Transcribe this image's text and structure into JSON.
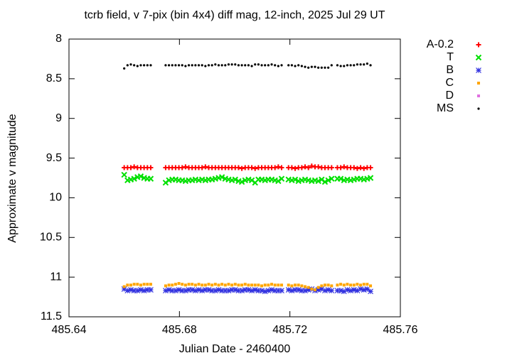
{
  "chart_data": {
    "type": "scatter",
    "title": "tcrb field, v 7-pix (bin 4x4) diff mag, 12-inch, 2025 Jul 29 UT",
    "x_label": "Julian Date - 2460400",
    "y_label": "Approximate v magnitude",
    "xlim": [
      485.64,
      485.76
    ],
    "xticks": [
      485.64,
      485.68,
      485.72,
      485.76
    ],
    "ylim": [
      8,
      11.5
    ],
    "yticks": [
      8,
      8.5,
      9,
      9.5,
      10,
      10.5,
      11,
      11.5
    ],
    "y_reversed": true,
    "legend": "outside-right",
    "x": [
      485.66,
      485.6612,
      485.6624,
      485.6636,
      485.6648,
      485.666,
      485.6672,
      485.6684,
      485.6696,
      485.675,
      485.6762,
      485.6774,
      485.6786,
      485.6798,
      485.681,
      485.6822,
      485.6834,
      485.6846,
      485.6858,
      485.687,
      485.6882,
      485.6894,
      485.6906,
      485.6918,
      485.693,
      485.6942,
      485.6954,
      485.6966,
      485.6978,
      485.699,
      485.7002,
      485.7014,
      485.7026,
      485.7038,
      485.705,
      485.7062,
      485.7074,
      485.7086,
      485.7098,
      485.711,
      485.7122,
      485.7134,
      485.7146,
      485.7158,
      485.717,
      485.7195,
      485.7207,
      485.7219,
      485.7231,
      485.7243,
      485.7255,
      485.7267,
      485.7279,
      485.7291,
      485.7303,
      485.7315,
      485.7327,
      485.7339,
      485.7351,
      485.7372,
      485.7384,
      485.7396,
      485.7408,
      485.742,
      485.7432,
      485.7444,
      485.7456,
      485.7468,
      485.748,
      485.7492
    ],
    "series": [
      {
        "name": "A-0.2",
        "color": "#ff0000",
        "marker": "plus",
        "values": [
          9.62,
          9.62,
          9.62,
          9.61,
          9.62,
          9.62,
          9.62,
          9.62,
          9.62,
          9.62,
          9.62,
          9.62,
          9.62,
          9.62,
          9.62,
          9.61,
          9.62,
          9.62,
          9.62,
          9.62,
          9.62,
          9.61,
          9.62,
          9.62,
          9.62,
          9.62,
          9.62,
          9.62,
          9.62,
          9.62,
          9.62,
          9.62,
          9.63,
          9.62,
          9.62,
          9.62,
          9.63,
          9.62,
          9.62,
          9.62,
          9.62,
          9.62,
          9.62,
          9.61,
          9.62,
          9.62,
          9.62,
          9.63,
          9.62,
          9.62,
          9.61,
          9.62,
          9.6,
          9.61,
          9.61,
          9.62,
          9.62,
          9.62,
          9.62,
          9.62,
          9.62,
          9.61,
          9.62,
          9.62,
          9.62,
          9.63,
          9.62,
          9.63,
          9.62,
          9.62
        ]
      },
      {
        "name": "T",
        "color": "#00e000",
        "marker": "cross",
        "values": [
          9.71,
          9.78,
          9.77,
          9.76,
          9.74,
          9.73,
          9.75,
          9.76,
          9.76,
          9.81,
          9.78,
          9.77,
          9.77,
          9.78,
          9.78,
          9.79,
          9.78,
          9.78,
          9.77,
          9.78,
          9.77,
          9.78,
          9.77,
          9.77,
          9.76,
          9.75,
          9.74,
          9.76,
          9.77,
          9.78,
          9.77,
          9.79,
          9.8,
          9.78,
          9.77,
          9.78,
          9.81,
          9.77,
          9.77,
          9.78,
          9.77,
          9.77,
          9.78,
          9.79,
          9.76,
          9.77,
          9.78,
          9.77,
          9.79,
          9.78,
          9.77,
          9.78,
          9.79,
          9.78,
          9.79,
          9.77,
          9.8,
          9.78,
          9.76,
          9.76,
          9.76,
          9.78,
          9.77,
          9.78,
          9.77,
          9.76,
          9.76,
          9.77,
          9.76,
          9.75
        ]
      },
      {
        "name": "B",
        "color": "#3030e0",
        "marker": "star",
        "values": [
          11.15,
          11.17,
          11.16,
          11.17,
          11.17,
          11.16,
          11.17,
          11.16,
          11.16,
          11.17,
          11.16,
          11.17,
          11.17,
          11.16,
          11.17,
          11.17,
          11.16,
          11.16,
          11.17,
          11.16,
          11.17,
          11.16,
          11.16,
          11.17,
          11.17,
          11.16,
          11.17,
          11.17,
          11.17,
          11.16,
          11.16,
          11.17,
          11.17,
          11.16,
          11.16,
          11.17,
          11.16,
          11.17,
          11.17,
          11.18,
          11.17,
          11.16,
          11.17,
          11.17,
          11.17,
          11.16,
          11.17,
          11.16,
          11.16,
          11.17,
          11.17,
          11.16,
          11.15,
          11.17,
          11.16,
          11.15,
          11.17,
          11.16,
          11.17,
          11.17,
          11.17,
          11.18,
          11.16,
          11.17,
          11.16,
          11.17,
          11.15,
          11.16,
          11.15,
          11.18
        ]
      },
      {
        "name": "C",
        "color": "#ffa500",
        "marker": "square",
        "values": [
          11.12,
          11.1,
          11.1,
          11.09,
          11.09,
          11.1,
          11.09,
          11.09,
          11.09,
          11.11,
          11.1,
          11.1,
          11.09,
          11.08,
          11.09,
          11.1,
          11.09,
          11.09,
          11.1,
          11.09,
          11.1,
          11.1,
          11.09,
          11.1,
          11.09,
          11.1,
          11.09,
          11.1,
          11.09,
          11.1,
          11.09,
          11.1,
          11.1,
          11.09,
          11.1,
          11.1,
          11.1,
          11.1,
          11.11,
          11.1,
          11.1,
          11.09,
          11.1,
          11.1,
          11.1,
          11.1,
          11.11,
          11.1,
          11.1,
          11.11,
          11.12,
          11.13,
          11.15,
          11.16,
          11.13,
          11.11,
          11.1,
          11.1,
          11.11,
          11.1,
          11.09,
          11.1,
          11.09,
          11.1,
          11.1,
          11.09,
          11.1,
          11.09,
          11.09,
          11.11
        ]
      },
      {
        "name": "D",
        "color": "#e070e0",
        "marker": "square",
        "values": [
          null,
          null,
          null,
          null,
          null,
          null,
          null,
          null,
          null,
          null,
          null,
          null,
          null,
          null,
          null,
          null,
          null,
          null,
          null,
          null,
          null,
          null,
          null,
          null,
          null,
          null,
          null,
          null,
          null,
          null,
          null,
          null,
          null,
          null,
          null,
          null,
          null,
          null,
          null,
          null,
          null,
          null,
          null,
          null,
          null,
          null,
          null,
          null,
          null,
          null,
          null,
          null,
          null,
          null,
          null,
          null,
          null,
          null,
          null,
          null,
          null,
          null,
          null,
          null,
          null,
          null,
          null,
          null,
          null,
          null
        ]
      },
      {
        "name": "MS",
        "color": "#000000",
        "marker": "dot",
        "values": [
          8.37,
          8.33,
          8.32,
          8.33,
          8.34,
          8.33,
          8.33,
          8.33,
          8.33,
          8.33,
          8.33,
          8.33,
          8.33,
          8.33,
          8.33,
          8.34,
          8.33,
          8.33,
          8.33,
          8.33,
          8.33,
          8.34,
          8.33,
          8.33,
          8.32,
          8.33,
          8.33,
          8.33,
          8.32,
          8.32,
          8.32,
          8.33,
          8.33,
          8.33,
          8.33,
          8.34,
          8.32,
          8.32,
          8.33,
          8.33,
          8.33,
          8.32,
          8.33,
          8.34,
          8.33,
          8.33,
          8.33,
          8.34,
          8.33,
          8.34,
          8.35,
          8.36,
          8.35,
          8.35,
          8.36,
          8.36,
          8.36,
          8.36,
          8.33,
          8.33,
          8.34,
          8.34,
          8.33,
          8.33,
          8.33,
          8.32,
          8.32,
          8.32,
          8.31,
          8.33
        ]
      }
    ]
  }
}
